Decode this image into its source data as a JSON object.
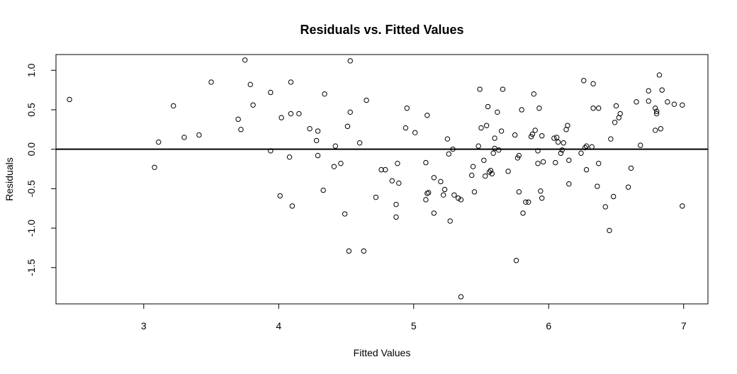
{
  "chart_data": {
    "type": "scatter",
    "title": "Residuals vs. Fitted Values",
    "xlabel": "Fitted Values",
    "ylabel": "Residuals",
    "xlim": [
      2.35,
      7.18
    ],
    "ylim": [
      -1.96,
      1.2
    ],
    "x_ticks": [
      3,
      4,
      5,
      6,
      7
    ],
    "y_ticks": [
      1.0,
      0.5,
      0.0,
      -0.5,
      -1.0,
      -1.5
    ],
    "x_tick_labels": [
      "3",
      "4",
      "5",
      "6",
      "7"
    ],
    "y_tick_labels": [
      "1.0",
      "0.5",
      "0.0",
      "-0.5",
      "-1.0",
      "-1.5"
    ],
    "reference_line_y": 0,
    "grid": false,
    "legend": "none",
    "marker": "open-circle",
    "points": [
      [
        2.45,
        0.63
      ],
      [
        3.08,
        -0.23
      ],
      [
        3.11,
        0.09
      ],
      [
        3.22,
        0.55
      ],
      [
        3.3,
        0.15
      ],
      [
        3.41,
        0.18
      ],
      [
        3.5,
        0.85
      ],
      [
        3.7,
        0.38
      ],
      [
        3.72,
        0.25
      ],
      [
        3.75,
        1.13
      ],
      [
        3.79,
        0.82
      ],
      [
        3.81,
        0.56
      ],
      [
        3.94,
        0.72
      ],
      [
        3.94,
        -0.02
      ],
      [
        4.01,
        -0.59
      ],
      [
        4.02,
        0.4
      ],
      [
        4.08,
        -0.1
      ],
      [
        4.09,
        0.45
      ],
      [
        4.09,
        0.85
      ],
      [
        4.1,
        -0.72
      ],
      [
        4.15,
        0.45
      ],
      [
        4.23,
        0.26
      ],
      [
        4.28,
        0.11
      ],
      [
        4.29,
        0.23
      ],
      [
        4.29,
        -0.08
      ],
      [
        4.33,
        -0.52
      ],
      [
        4.34,
        0.7
      ],
      [
        4.41,
        -0.22
      ],
      [
        4.42,
        0.04
      ],
      [
        4.46,
        -0.18
      ],
      [
        4.49,
        -0.82
      ],
      [
        4.51,
        0.29
      ],
      [
        4.52,
        -1.29
      ],
      [
        4.53,
        0.47
      ],
      [
        4.53,
        1.12
      ],
      [
        4.6,
        0.08
      ],
      [
        4.63,
        -1.29
      ],
      [
        4.65,
        0.62
      ],
      [
        4.72,
        -0.61
      ],
      [
        4.76,
        -0.26
      ],
      [
        4.79,
        -0.26
      ],
      [
        4.84,
        -0.4
      ],
      [
        4.87,
        -0.7
      ],
      [
        4.87,
        -0.86
      ],
      [
        4.88,
        -0.18
      ],
      [
        4.89,
        -0.43
      ],
      [
        4.94,
        0.27
      ],
      [
        4.95,
        0.52
      ],
      [
        5.01,
        0.21
      ],
      [
        5.09,
        -0.64
      ],
      [
        5.09,
        -0.17
      ],
      [
        5.1,
        0.43
      ],
      [
        5.1,
        -0.56
      ],
      [
        5.11,
        -0.55
      ],
      [
        5.15,
        -0.81
      ],
      [
        5.15,
        -0.36
      ],
      [
        5.2,
        -0.41
      ],
      [
        5.22,
        -0.58
      ],
      [
        5.23,
        -0.51
      ],
      [
        5.25,
        0.13
      ],
      [
        5.26,
        -0.06
      ],
      [
        5.27,
        -0.91
      ],
      [
        5.29,
        0.0
      ],
      [
        5.3,
        -0.58
      ],
      [
        5.33,
        -0.62
      ],
      [
        5.35,
        -0.64
      ],
      [
        5.35,
        -1.87
      ],
      [
        5.43,
        -0.33
      ],
      [
        5.44,
        -0.22
      ],
      [
        5.45,
        -0.54
      ],
      [
        5.48,
        0.04
      ],
      [
        5.49,
        0.76
      ],
      [
        5.5,
        0.27
      ],
      [
        5.52,
        -0.14
      ],
      [
        5.53,
        -0.34
      ],
      [
        5.54,
        0.3
      ],
      [
        5.55,
        0.54
      ],
      [
        5.56,
        -0.29
      ],
      [
        5.57,
        -0.27
      ],
      [
        5.58,
        -0.31
      ],
      [
        5.59,
        -0.05
      ],
      [
        5.6,
        0.14
      ],
      [
        5.6,
        0.01
      ],
      [
        5.62,
        0.47
      ],
      [
        5.63,
        -0.01
      ],
      [
        5.65,
        0.23
      ],
      [
        5.66,
        0.76
      ],
      [
        5.7,
        -0.28
      ],
      [
        5.75,
        0.18
      ],
      [
        5.76,
        -1.41
      ],
      [
        5.77,
        -0.11
      ],
      [
        5.78,
        -0.08
      ],
      [
        5.78,
        -0.54
      ],
      [
        5.8,
        0.5
      ],
      [
        5.81,
        -0.81
      ],
      [
        5.83,
        -0.67
      ],
      [
        5.85,
        -0.67
      ],
      [
        5.87,
        0.16
      ],
      [
        5.88,
        0.19
      ],
      [
        5.89,
        0.7
      ],
      [
        5.9,
        0.24
      ],
      [
        5.92,
        -0.18
      ],
      [
        5.92,
        -0.02
      ],
      [
        5.93,
        0.52
      ],
      [
        5.94,
        -0.53
      ],
      [
        5.95,
        -0.62
      ],
      [
        5.95,
        0.17
      ],
      [
        5.96,
        -0.16
      ],
      [
        6.04,
        0.14
      ],
      [
        6.05,
        -0.17
      ],
      [
        6.06,
        0.15
      ],
      [
        6.07,
        0.09
      ],
      [
        6.09,
        -0.05
      ],
      [
        6.1,
        -0.01
      ],
      [
        6.11,
        0.08
      ],
      [
        6.13,
        0.25
      ],
      [
        6.14,
        0.3
      ],
      [
        6.15,
        -0.44
      ],
      [
        6.15,
        -0.14
      ],
      [
        6.24,
        -0.05
      ],
      [
        6.26,
        0.87
      ],
      [
        6.27,
        0.02
      ],
      [
        6.28,
        -0.26
      ],
      [
        6.28,
        0.04
      ],
      [
        6.32,
        0.03
      ],
      [
        6.33,
        0.52
      ],
      [
        6.33,
        0.83
      ],
      [
        6.36,
        -0.47
      ],
      [
        6.37,
        0.52
      ],
      [
        6.37,
        -0.18
      ],
      [
        6.42,
        -0.73
      ],
      [
        6.45,
        -1.03
      ],
      [
        6.46,
        0.13
      ],
      [
        6.48,
        -0.6
      ],
      [
        6.49,
        0.34
      ],
      [
        6.5,
        0.55
      ],
      [
        6.52,
        0.4
      ],
      [
        6.53,
        0.45
      ],
      [
        6.59,
        -0.48
      ],
      [
        6.61,
        -0.24
      ],
      [
        6.65,
        0.6
      ],
      [
        6.68,
        0.05
      ],
      [
        6.74,
        0.74
      ],
      [
        6.74,
        0.61
      ],
      [
        6.79,
        0.24
      ],
      [
        6.79,
        0.52
      ],
      [
        6.8,
        0.45
      ],
      [
        6.8,
        0.48
      ],
      [
        6.82,
        0.94
      ],
      [
        6.83,
        0.26
      ],
      [
        6.84,
        0.75
      ],
      [
        6.88,
        0.6
      ],
      [
        6.93,
        0.57
      ],
      [
        6.99,
        -0.72
      ],
      [
        6.99,
        0.56
      ]
    ]
  }
}
